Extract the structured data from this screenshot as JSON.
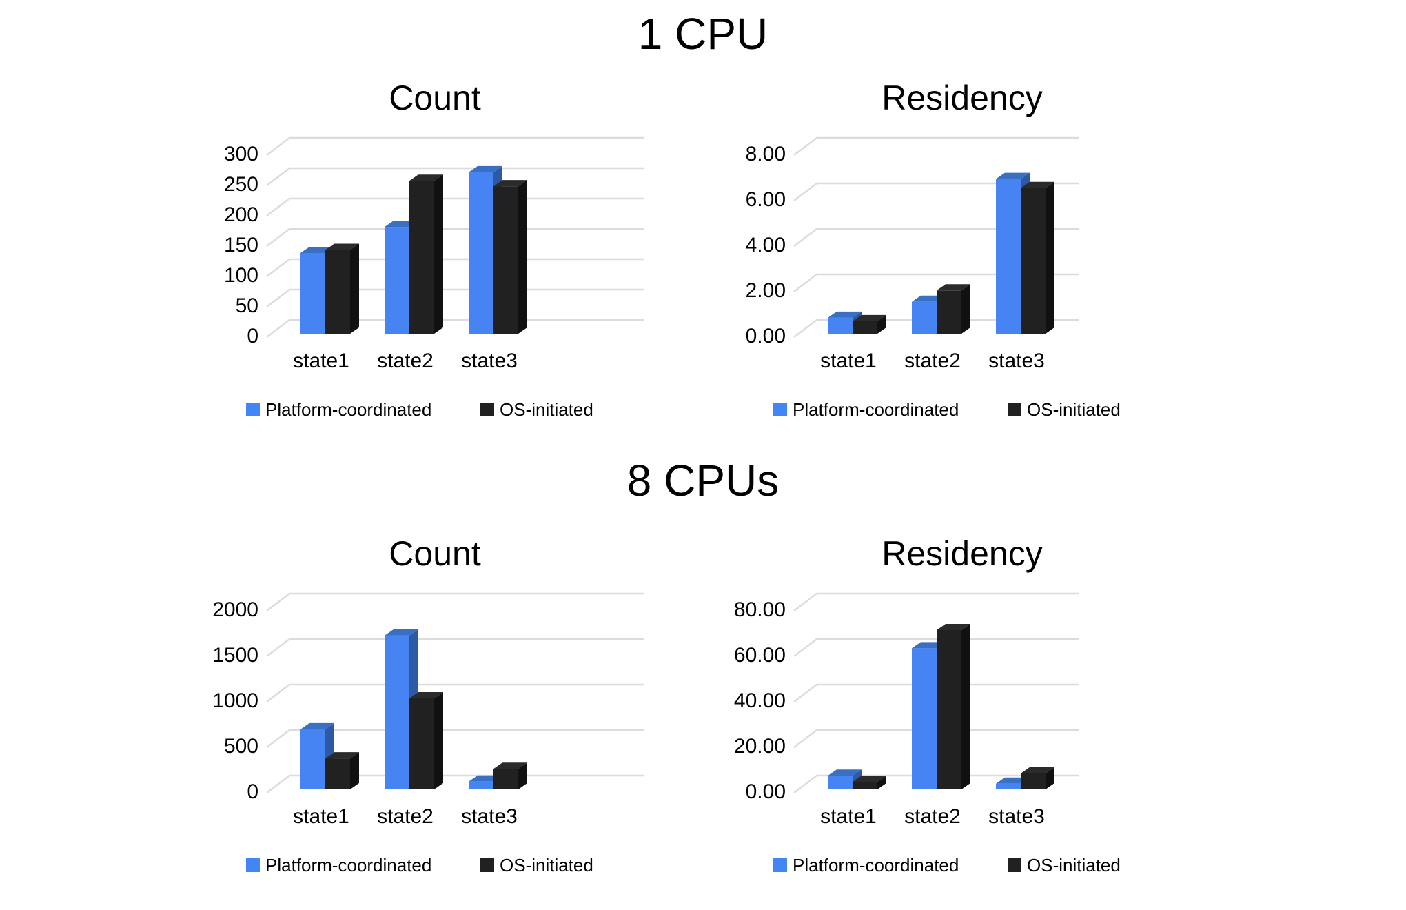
{
  "page": {
    "background": "#ffffff",
    "text_color": "#000000",
    "gridline_color": "#DCDCDC"
  },
  "sections": [
    {
      "title": "1 CPU"
    },
    {
      "title": "8 CPUs"
    }
  ],
  "legend": {
    "items": [
      {
        "label": "Platform-coordinated",
        "color": "#4285F4"
      },
      {
        "label": "OS-initiated",
        "color": "#212121"
      }
    ]
  },
  "series_styles": [
    {
      "name": "Platform-coordinated",
      "front": "#4584F2",
      "top": "#3A70C2",
      "side": "#2E59A5",
      "legend": "#4285F4"
    },
    {
      "name": "OS-initiated",
      "front": "#212121",
      "top": "#2B2B2B",
      "side": "#111111",
      "legend": "#212121"
    }
  ],
  "chart_data": [
    {
      "type": "bar",
      "style": "3d-column",
      "section": "1 CPU",
      "title": "Count",
      "categories": [
        "state1",
        "state2",
        "state3"
      ],
      "series": [
        {
          "name": "Platform-coordinated",
          "values": [
            133,
            176,
            266
          ]
        },
        {
          "name": "OS-initiated",
          "values": [
            138,
            252,
            243
          ]
        }
      ],
      "ylim": [
        0,
        300
      ],
      "yticks": [
        "0",
        "50",
        "100",
        "150",
        "200",
        "250",
        "300"
      ],
      "grid": true,
      "legend_position": "bottom"
    },
    {
      "type": "bar",
      "style": "3d-column",
      "section": "1 CPU",
      "title": "Residency",
      "categories": [
        "state1",
        "state2",
        "state3"
      ],
      "series": [
        {
          "name": "Platform-coordinated",
          "values": [
            0.7,
            1.4,
            6.8
          ]
        },
        {
          "name": "OS-initiated",
          "values": [
            0.55,
            1.9,
            6.4
          ]
        }
      ],
      "ylim": [
        0,
        8
      ],
      "yticks": [
        "0.00",
        "2.00",
        "4.00",
        "6.00",
        "8.00"
      ],
      "grid": true,
      "legend_position": "bottom"
    },
    {
      "type": "bar",
      "style": "3d-column",
      "section": "8 CPUs",
      "title": "Count",
      "categories": [
        "state1",
        "state2",
        "state3"
      ],
      "series": [
        {
          "name": "Platform-coordinated",
          "values": [
            660,
            1690,
            85
          ]
        },
        {
          "name": "OS-initiated",
          "values": [
            340,
            1000,
            225
          ]
        }
      ],
      "ylim": [
        0,
        2000
      ],
      "yticks": [
        "0",
        "500",
        "1000",
        "1500",
        "2000"
      ],
      "grid": true,
      "legend_position": "bottom"
    },
    {
      "type": "bar",
      "style": "3d-column",
      "section": "8 CPUs",
      "title": "Residency",
      "categories": [
        "state1",
        "state2",
        "state3"
      ],
      "series": [
        {
          "name": "Platform-coordinated",
          "values": [
            6.0,
            62.0,
            2.5
          ]
        },
        {
          "name": "OS-initiated",
          "values": [
            3.3,
            70.0,
            7.0
          ]
        }
      ],
      "ylim": [
        0,
        80
      ],
      "yticks": [
        "0.00",
        "20.00",
        "40.00",
        "60.00",
        "80.00"
      ],
      "grid": true,
      "legend_position": "bottom"
    }
  ]
}
